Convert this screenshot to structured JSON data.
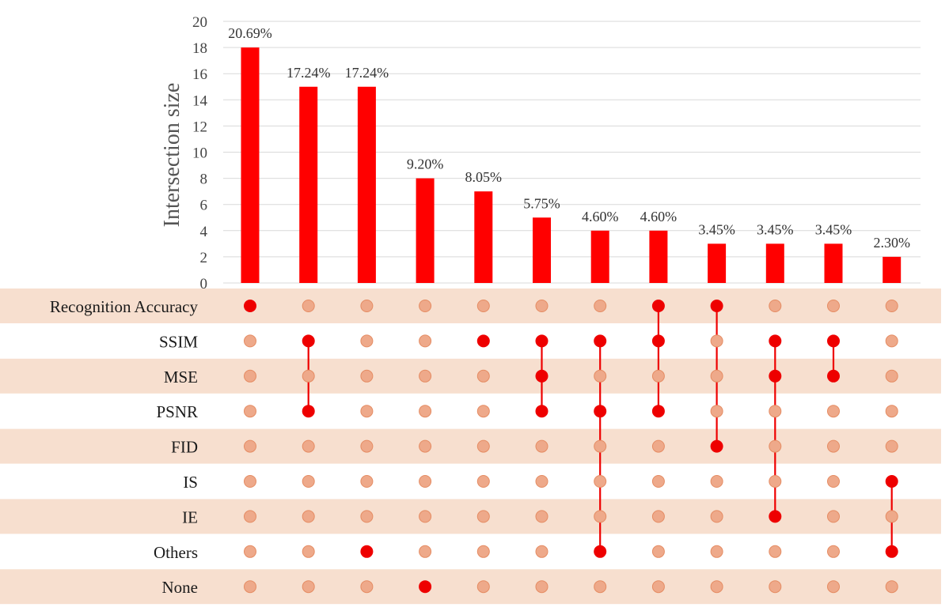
{
  "chart_data": {
    "type": "bar",
    "subtype": "upset",
    "ylabel": "Intersection size",
    "ylim": [
      0,
      20
    ],
    "yticks": [
      0,
      2,
      4,
      6,
      8,
      10,
      12,
      14,
      16,
      18,
      20
    ],
    "grid": "horizontal",
    "values": [
      18,
      15,
      15,
      8,
      7,
      5,
      4,
      4,
      3,
      3,
      3,
      2
    ],
    "data_labels": [
      "20.69%",
      "17.24%",
      "17.24%",
      "9.20%",
      "8.05%",
      "5.75%",
      "4.60%",
      "4.60%",
      "3.45%",
      "3.45%",
      "3.45%",
      "2.30%"
    ],
    "sets": [
      "Recognition Accuracy",
      "SSIM",
      "MSE",
      "PSNR",
      "FID",
      "IS",
      "IE",
      "Others",
      "None"
    ],
    "intersections": [
      [
        0
      ],
      [
        1,
        3
      ],
      [
        7
      ],
      [
        8
      ],
      [
        1
      ],
      [
        1,
        2,
        3
      ],
      [
        1,
        3,
        7
      ],
      [
        0,
        1,
        3
      ],
      [
        0,
        4
      ],
      [
        1,
        2,
        6
      ],
      [
        1,
        2
      ],
      [
        5,
        7
      ]
    ],
    "colors": {
      "bar": "#ff0000",
      "active_dot": "#ee0000",
      "inactive_dot": "#eea98a",
      "inactive_dot_stroke": "#e58c63",
      "row_band": "#f7dfcf",
      "grid": "#d9d9d9"
    }
  }
}
